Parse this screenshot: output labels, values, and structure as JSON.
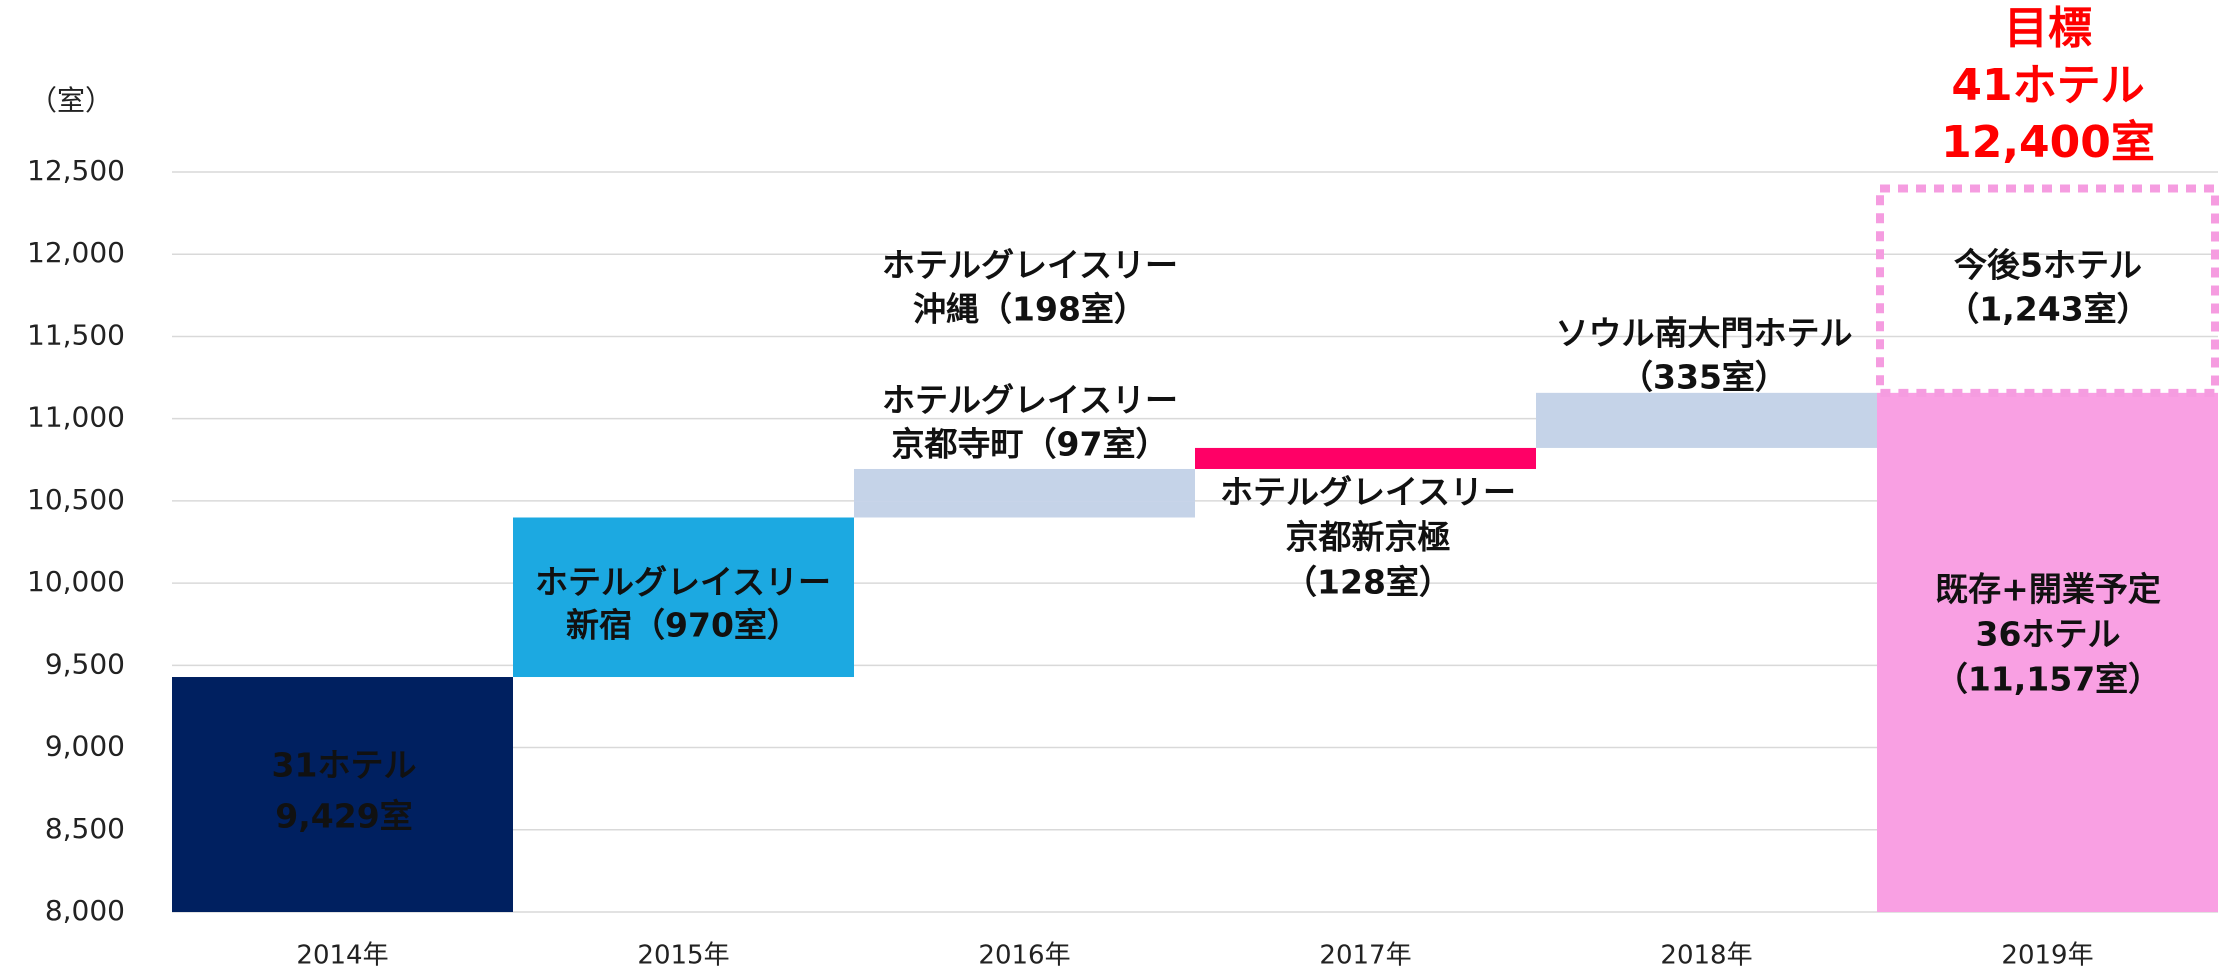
{
  "chart_data": {
    "type": "waterfall",
    "y_unit_label": "（室）",
    "categories": [
      "2014年",
      "2015年",
      "2016年",
      "2017年",
      "2018年",
      "2019年"
    ],
    "ylim": [
      8000,
      12500
    ],
    "yticks": [
      {
        "value": 8000,
        "label": "8,000"
      },
      {
        "value": 8500,
        "label": "8,500"
      },
      {
        "value": 9000,
        "label": "9,000"
      },
      {
        "value": 9500,
        "label": "9,500"
      },
      {
        "value": 10000,
        "label": "10,000"
      },
      {
        "value": 10500,
        "label": "10,500"
      },
      {
        "value": 11000,
        "label": "11,000"
      },
      {
        "value": 11500,
        "label": "11,500"
      },
      {
        "value": 12000,
        "label": "12,000"
      },
      {
        "value": 12500,
        "label": "12,500"
      }
    ],
    "grid": true,
    "segments": [
      {
        "category": 0,
        "kind": "total",
        "value": 9429,
        "color": "#002060",
        "label": [
          "31ホテル",
          "9,429室"
        ]
      },
      {
        "category": 1,
        "kind": "delta",
        "value": 970,
        "color": "#1ca9e1",
        "label": [
          "ホテルグレイスリー",
          "新宿（970室）"
        ]
      },
      {
        "category": 2,
        "kind": "delta",
        "value": 97,
        "color": "#c5d3e8",
        "label": [
          "ホテルグレイスリー",
          "京都寺町（97室）"
        ]
      },
      {
        "category": 2,
        "kind": "delta",
        "value": 198,
        "color": "#c5d3e8",
        "label": [
          "ホテルグレイスリー",
          "沖縄（198室）"
        ]
      },
      {
        "category": 3,
        "kind": "delta",
        "value": 128,
        "color": "#ff0066",
        "label": [
          "ホテルグレイスリー",
          "京都新京極",
          "（128室）"
        ]
      },
      {
        "category": 4,
        "kind": "delta",
        "value": 335,
        "color": "#c5d3e8",
        "label": [
          "ソウル南大門ホテル",
          "（335室）"
        ]
      },
      {
        "category": 5,
        "kind": "total",
        "value": 11157,
        "color": "#f9a0e3",
        "label": [
          "既存+開業予定",
          "36ホテル",
          "（11,157室）"
        ]
      },
      {
        "category": 5,
        "kind": "delta",
        "value": 1243,
        "color": "#f59ce0",
        "dashed": true,
        "label": [
          "今後5ホテル",
          "（1,243室）"
        ]
      }
    ],
    "target_label": [
      "目標",
      "41ホテル",
      "12,400室"
    ],
    "target_color": "#ff0000"
  }
}
